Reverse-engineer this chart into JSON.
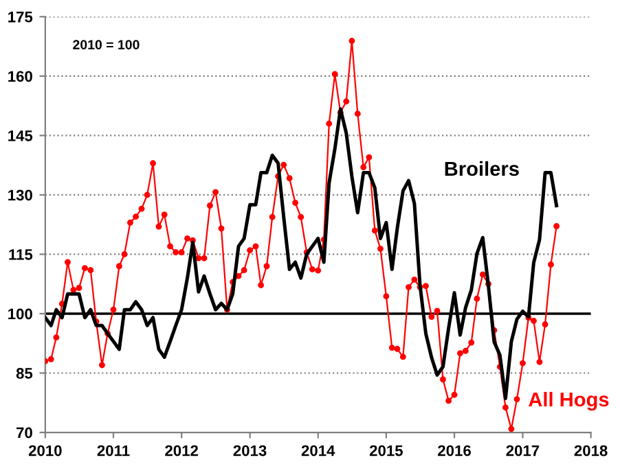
{
  "chart_data": {
    "type": "line",
    "annotations": [
      "2010 = 100"
    ],
    "x": [
      "2010-01",
      "2010-02",
      "2010-03",
      "2010-04",
      "2010-05",
      "2010-06",
      "2010-07",
      "2010-08",
      "2010-09",
      "2010-10",
      "2010-11",
      "2010-12",
      "2011-01",
      "2011-02",
      "2011-03",
      "2011-04",
      "2011-05",
      "2011-06",
      "2011-07",
      "2011-08",
      "2011-09",
      "2011-10",
      "2011-11",
      "2011-12",
      "2012-01",
      "2012-02",
      "2012-03",
      "2012-04",
      "2012-05",
      "2012-06",
      "2012-07",
      "2012-08",
      "2012-09",
      "2012-10",
      "2012-11",
      "2012-12",
      "2013-01",
      "2013-02",
      "2013-03",
      "2013-04",
      "2013-05",
      "2013-06",
      "2013-07",
      "2013-08",
      "2013-09",
      "2013-10",
      "2013-11",
      "2013-12",
      "2014-01",
      "2014-02",
      "2014-03",
      "2014-04",
      "2014-05",
      "2014-06",
      "2014-07",
      "2014-08",
      "2014-09",
      "2014-10",
      "2014-11",
      "2014-12",
      "2015-01",
      "2015-02",
      "2015-03",
      "2015-04",
      "2015-05",
      "2015-06",
      "2015-07",
      "2015-08",
      "2015-09",
      "2015-10",
      "2015-11",
      "2015-12",
      "2016-01",
      "2016-02",
      "2016-03",
      "2016-04",
      "2016-05",
      "2016-06",
      "2016-07",
      "2016-08",
      "2016-09",
      "2016-10",
      "2016-11",
      "2016-12",
      "2017-01",
      "2017-02",
      "2017-03",
      "2017-04",
      "2017-05",
      "2017-06",
      "2017-07"
    ],
    "series": [
      {
        "name": "Broilers",
        "color": "#000000",
        "marker": "none",
        "values": [
          99,
          97,
          101,
          99,
          105,
          105,
          105,
          99,
          101,
          97,
          97,
          95,
          93,
          91,
          101,
          101,
          103,
          101,
          97,
          99,
          91,
          89,
          93,
          97,
          101,
          109,
          118,
          105.5,
          109.5,
          105,
          101,
          102.6,
          101,
          105,
          117,
          119,
          127.5,
          127.5,
          135.6,
          135.6,
          140,
          138,
          124.4,
          111.2,
          113,
          109,
          115,
          117,
          119,
          113,
          133,
          141.6,
          151.7,
          145.6,
          134.7,
          125.5,
          135.6,
          135.6,
          131.8,
          119,
          123,
          111.2,
          121.5,
          131,
          133.6,
          127.8,
          107.2,
          95,
          88.9,
          84.5,
          86.6,
          96.3,
          105.3,
          94.6,
          101.5,
          106,
          115.2,
          119.2,
          107.2,
          92.9,
          89.5,
          78.6,
          92.9,
          98.6,
          100.6,
          99.2,
          112.9,
          118.7,
          135.6,
          135.6,
          127.3
        ]
      },
      {
        "name": "All Hogs",
        "color": "#ff0000",
        "marker": "circle",
        "values": [
          88,
          88.5,
          94,
          102.5,
          113,
          106,
          106.5,
          111.5,
          111,
          98,
          87,
          95,
          101,
          112,
          115,
          123,
          124.5,
          126.5,
          130,
          138,
          122,
          125,
          117,
          115.5,
          115.5,
          119,
          118.5,
          114,
          114,
          127.3,
          130.7,
          121.5,
          101,
          108,
          109.5,
          111,
          116,
          117,
          107.2,
          112,
          124.4,
          134.7,
          137.6,
          134.2,
          128,
          124.4,
          115.5,
          111.2,
          110.9,
          118.7,
          148,
          160.5,
          150.8,
          153.6,
          168.9,
          150.5,
          137,
          139.5,
          121,
          116.4,
          104.4,
          91.4,
          91.1,
          89.1,
          106.7,
          108.6,
          106.7,
          107,
          99.2,
          100.7,
          83.4,
          78,
          79.5,
          90,
          90.6,
          92.7,
          103.8,
          109.9,
          107.5,
          95.8,
          86.6,
          76.3,
          70.9,
          78.4,
          87.5,
          99,
          98.2,
          87.8,
          97.3,
          112.4,
          122.1
        ]
      }
    ],
    "xlim": [
      "2010",
      "2018"
    ],
    "xticks": [
      "2010",
      "2011",
      "2012",
      "2013",
      "2014",
      "2015",
      "2016",
      "2017",
      "2018"
    ],
    "ylim": [
      70,
      175
    ],
    "yticks": [
      70,
      85,
      100,
      115,
      130,
      145,
      160,
      175
    ],
    "ref_lines": [
      {
        "axis": "y",
        "value": 100,
        "color": "#000000"
      }
    ],
    "grid": "y"
  }
}
